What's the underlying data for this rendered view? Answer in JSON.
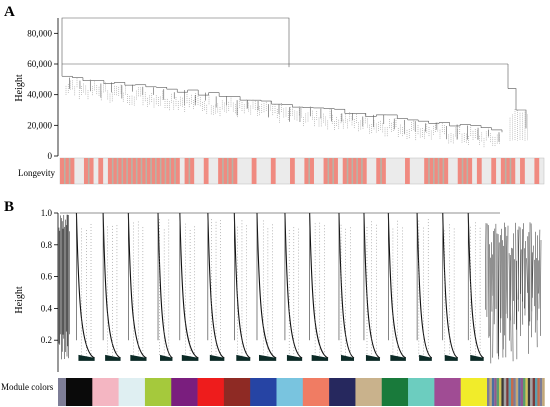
{
  "panels": {
    "a_label": "A",
    "b_label": "B"
  },
  "chart_data": [
    {
      "type": "dendrogram",
      "panel": "A",
      "ylabel": "Height",
      "ylim": [
        0,
        90000
      ],
      "yticks": [
        0,
        20000,
        40000,
        60000,
        80000
      ],
      "ytick_labels": [
        "0",
        "20,000",
        "40,000",
        "60,000",
        "80,000"
      ],
      "root_height": 90000,
      "main_clusters": [
        {
          "name": "left",
          "height": 60000
        },
        {
          "name": "right",
          "height": 58000
        }
      ],
      "trait_bar": {
        "label": "Longevity",
        "background": "#ebebeb",
        "highlight_color": "#f08a80",
        "divider_color": "#b8b3a6",
        "pattern": "3,2,2,1,1,1,15,1,2,2,1,2,4,3,1,3,1,3,1,2,2,2,3,1,5,2,2,4,1,3,5,2,3,1,1,2,1,1,3,1,1,2,1,1"
      }
    },
    {
      "type": "dendrogram",
      "panel": "B",
      "ylabel": "Height",
      "ylim": [
        0,
        1.0
      ],
      "yticks": [
        0.2,
        0.4,
        0.6,
        0.8,
        1.0
      ],
      "ytick_labels": [
        "0.2",
        "0.4",
        "0.6",
        "0.8",
        "1.0"
      ],
      "module_colors": {
        "label": "Module colors",
        "colors": [
          "#7d7d96",
          "#0a0a0a",
          "#f4b6c2",
          "#dfeff2",
          "#a5c93c",
          "#7a1e7e",
          "#ee1c1c",
          "#8e2a24",
          "#2644a4",
          "#79c4df",
          "#f07c63",
          "#26285e",
          "#c9b28c",
          "#197a3b",
          "#6ccdbf",
          "#a04c94",
          "#f1ec2a",
          "#8a8a8a"
        ]
      }
    }
  ]
}
